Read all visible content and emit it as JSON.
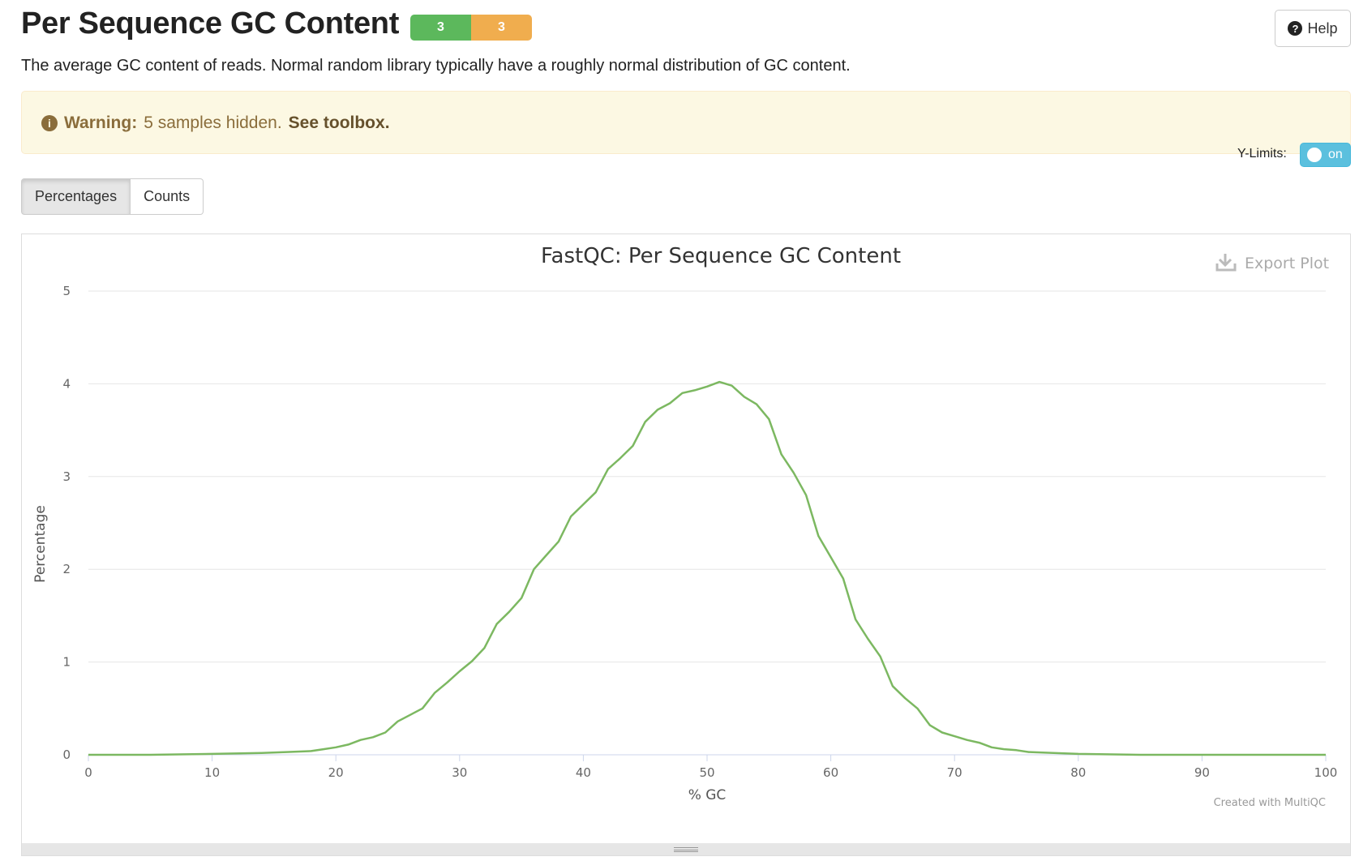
{
  "header": {
    "title": "Per Sequence GC Content",
    "status_pass_count": "3",
    "status_warn_count": "3",
    "help_label": "Help"
  },
  "description": "The average GC content of reads. Normal random library typically have a roughly normal distribution of GC content.",
  "warning": {
    "label": "Warning:",
    "message": "5 samples hidden.",
    "link": "See toolbox."
  },
  "ylimits": {
    "label": "Y-Limits:",
    "state": "on"
  },
  "tabs": [
    {
      "label": "Percentages",
      "active": true
    },
    {
      "label": "Counts",
      "active": false
    }
  ],
  "plot": {
    "export_label": "Export Plot",
    "credit": "Created with MultiQC"
  },
  "colors": {
    "series": "#7cb861",
    "pass": "#5cb85c",
    "warn": "#f0ad4e",
    "toggle": "#5bc0de"
  },
  "chart_data": {
    "type": "line",
    "title": "FastQC: Per Sequence GC Content",
    "xlabel": "% GC",
    "ylabel": "Percentage",
    "xlim": [
      0,
      100
    ],
    "ylim": [
      0,
      5
    ],
    "xticks": [
      0,
      10,
      20,
      30,
      40,
      50,
      60,
      70,
      80,
      90,
      100
    ],
    "yticks": [
      0,
      1,
      2,
      3,
      4,
      5
    ],
    "grid": true,
    "series": [
      {
        "x": [
          0,
          5,
          10,
          14,
          16,
          18,
          19,
          20,
          21,
          22,
          23,
          24,
          25,
          26,
          27,
          28,
          29,
          30,
          31,
          32,
          33,
          34,
          35,
          36,
          37,
          38,
          39,
          40,
          41,
          42,
          43,
          44,
          45,
          46,
          47,
          48,
          49,
          50,
          51,
          52,
          53,
          54,
          55,
          56,
          57,
          58,
          59,
          60,
          61,
          62,
          63,
          64,
          65,
          66,
          67,
          68,
          69,
          70,
          71,
          72,
          73,
          74,
          75,
          76,
          78,
          80,
          85,
          90,
          95,
          100
        ],
        "values": [
          0,
          0,
          0.01,
          0.02,
          0.03,
          0.04,
          0.06,
          0.08,
          0.11,
          0.16,
          0.19,
          0.24,
          0.36,
          0.43,
          0.5,
          0.67,
          0.78,
          0.9,
          1.01,
          1.15,
          1.41,
          1.54,
          1.69,
          2.0,
          2.15,
          2.3,
          2.57,
          2.7,
          2.83,
          3.08,
          3.2,
          3.33,
          3.59,
          3.72,
          3.79,
          3.9,
          3.93,
          3.97,
          4.02,
          3.98,
          3.86,
          3.78,
          3.62,
          3.24,
          3.04,
          2.8,
          2.36,
          2.13,
          1.9,
          1.46,
          1.25,
          1.06,
          0.74,
          0.61,
          0.5,
          0.32,
          0.24,
          0.2,
          0.16,
          0.13,
          0.08,
          0.06,
          0.05,
          0.03,
          0.02,
          0.01,
          0,
          0,
          0,
          0
        ]
      }
    ]
  }
}
